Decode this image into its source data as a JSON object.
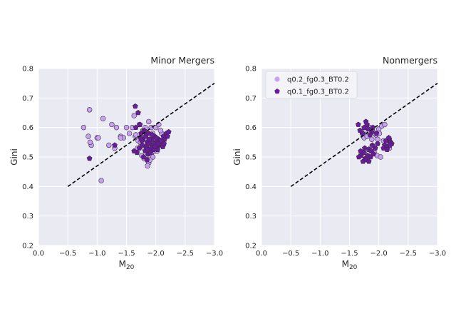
{
  "colors": {
    "axes_bg": "#eaeaf2",
    "grid": "#ffffff",
    "series_light": "#c7a2ef",
    "series_dark": "#6a1b9a",
    "edge": "#3a2a4a",
    "line": "#000000"
  },
  "chart_data": [
    {
      "type": "scatter",
      "title": "Minor Mergers",
      "xlabel": "M",
      "xlabel_sub": "20",
      "ylabel": "Gini",
      "xlim": [
        0.0,
        -3.0
      ],
      "ylim": [
        0.2,
        0.8
      ],
      "xticks": [
        "0.0",
        "−0.5",
        "−1.0",
        "−1.5",
        "−2.0",
        "−2.5",
        "−3.0"
      ],
      "yticks": [
        "0.2",
        "0.3",
        "0.4",
        "0.5",
        "0.6",
        "0.7",
        "0.8"
      ],
      "grid": true,
      "reference_line": {
        "x": [
          -0.5,
          -3.0
        ],
        "y": [
          0.4,
          0.75
        ],
        "style": "dashed"
      },
      "series": [
        {
          "name": "q0.2_fg0.3_BT0.2",
          "marker": "circle",
          "x": [
            -0.87,
            -0.77,
            -0.85,
            -0.9,
            -0.88,
            -1.0,
            -1.07,
            -1.1,
            -1.25,
            -1.33,
            -1.4,
            -1.45,
            -1.5,
            -1.55,
            -1.6,
            -1.65,
            -1.2,
            -1.3,
            -1.4,
            -1.72,
            -1.78,
            -1.82,
            -1.88,
            -1.92,
            -1.95,
            -2.0,
            -2.05,
            -1.7,
            -1.75,
            -1.8,
            -1.85,
            -1.9,
            -1.95,
            -2.0,
            -2.1,
            -1.83,
            -1.87,
            -1.92,
            -1.98,
            -1.76,
            -1.8,
            -1.88,
            -1.95,
            -2.02,
            -1.86,
            -1.9,
            -1.84,
            -1.94,
            -1.78,
            -1.66,
            -1.63,
            -2.08,
            -1.97,
            -1.02,
            -1.69,
            -1.74
          ],
          "y": [
            0.66,
            0.6,
            0.57,
            0.54,
            0.55,
            0.565,
            0.42,
            0.63,
            0.61,
            0.6,
            0.57,
            0.565,
            0.6,
            0.58,
            0.6,
            0.57,
            0.54,
            0.53,
            0.565,
            0.61,
            0.59,
            0.6,
            0.62,
            0.6,
            0.58,
            0.6,
            0.61,
            0.555,
            0.54,
            0.53,
            0.56,
            0.52,
            0.54,
            0.55,
            0.58,
            0.5,
            0.49,
            0.51,
            0.52,
            0.505,
            0.495,
            0.48,
            0.5,
            0.52,
            0.47,
            0.49,
            0.53,
            0.56,
            0.57,
            0.575,
            0.64,
            0.59,
            0.535,
            0.565,
            0.53,
            0.55
          ]
        },
        {
          "name": "q0.1_fg0.3_BT0.2",
          "marker": "pentagon",
          "x": [
            -0.87,
            -1.3,
            -1.65,
            -1.7,
            -1.73,
            -1.75,
            -1.78,
            -1.8,
            -1.83,
            -1.85,
            -1.88,
            -1.9,
            -1.93,
            -1.95,
            -1.98,
            -2.0,
            -2.02,
            -2.05,
            -2.08,
            -2.1,
            -2.13,
            -2.15,
            -2.18,
            -2.2,
            -2.22,
            -1.72,
            -1.77,
            -1.82,
            -1.87,
            -1.92,
            -1.97,
            -2.03,
            -2.07,
            -2.12,
            -1.68,
            -1.76,
            -1.84,
            -1.91,
            -1.96,
            -2.01,
            -2.06,
            -1.74,
            -1.81,
            -1.89,
            -1.94,
            -1.99,
            -2.04,
            -2.09,
            -2.14,
            -1.63,
            -1.66,
            -1.79,
            -1.86,
            -1.85
          ],
          "y": [
            0.495,
            0.54,
            0.672,
            0.65,
            0.61,
            0.58,
            0.56,
            0.59,
            0.57,
            0.55,
            0.58,
            0.545,
            0.56,
            0.54,
            0.57,
            0.55,
            0.53,
            0.56,
            0.54,
            0.55,
            0.57,
            0.56,
            0.58,
            0.57,
            0.585,
            0.53,
            0.54,
            0.52,
            0.51,
            0.53,
            0.545,
            0.525,
            0.545,
            0.535,
            0.515,
            0.555,
            0.535,
            0.515,
            0.525,
            0.565,
            0.555,
            0.565,
            0.585,
            0.56,
            0.575,
            0.535,
            0.545,
            0.555,
            0.545,
            0.52,
            0.6,
            0.5,
            0.525,
            0.49
          ]
        }
      ]
    },
    {
      "type": "scatter",
      "title": "Nonmergers",
      "xlabel": "M",
      "xlabel_sub": "20",
      "ylabel": "Gini",
      "xlim": [
        0.0,
        -3.0
      ],
      "ylim": [
        0.2,
        0.8
      ],
      "xticks": [
        "0.0",
        "−0.5",
        "−1.0",
        "−1.5",
        "−2.0",
        "−2.5",
        "−3.0"
      ],
      "yticks": [
        "0.2",
        "0.3",
        "0.4",
        "0.5",
        "0.6",
        "0.7",
        "0.8"
      ],
      "grid": true,
      "legend": {
        "position": "upper left",
        "entries": [
          "q0.2_fg0.3_BT0.2",
          "q0.1_fg0.3_BT0.2"
        ]
      },
      "reference_line": {
        "x": [
          -0.5,
          -3.0
        ],
        "y": [
          0.4,
          0.75
        ],
        "style": "dashed"
      },
      "series": [
        {
          "name": "q0.2_fg0.3_BT0.2",
          "marker": "circle",
          "x": [
            -1.72,
            -1.78,
            -1.85,
            -1.9,
            -1.95,
            -2.0,
            -2.05,
            -2.1,
            -1.75,
            -1.8,
            -1.88,
            -1.93,
            -1.98,
            -1.7,
            -1.76,
            -1.82,
            -1.86,
            -2.15,
            -2.2,
            -2.18,
            -2.12,
            -2.08,
            -1.92,
            -1.97,
            -1.83,
            -1.79,
            -2.03,
            -2.01
          ],
          "y": [
            0.58,
            0.59,
            0.6,
            0.585,
            0.575,
            0.595,
            0.605,
            0.61,
            0.565,
            0.57,
            0.56,
            0.58,
            0.56,
            0.51,
            0.52,
            0.5,
            0.53,
            0.54,
            0.55,
            0.53,
            0.545,
            0.555,
            0.515,
            0.505,
            0.525,
            0.495,
            0.5,
            0.58
          ]
        },
        {
          "name": "q0.1_fg0.3_BT0.2",
          "marker": "pentagon",
          "x": [
            -1.65,
            -1.68,
            -1.72,
            -1.75,
            -1.78,
            -1.8,
            -1.82,
            -1.85,
            -1.88,
            -1.9,
            -1.7,
            -1.74,
            -1.77,
            -1.81,
            -1.84,
            -1.87,
            -1.91,
            -1.94,
            -1.98,
            -1.73,
            -1.79,
            -1.86,
            -2.1,
            -2.12,
            -2.15,
            -2.18,
            -2.2,
            -2.22,
            -2.14,
            -2.17,
            -2.08,
            -2.19,
            -1.66,
            -1.69,
            -1.89,
            -1.96,
            -1.83,
            -1.76
          ],
          "y": [
            0.61,
            0.59,
            0.58,
            0.6,
            0.62,
            0.61,
            0.595,
            0.575,
            0.585,
            0.6,
            0.505,
            0.515,
            0.495,
            0.505,
            0.525,
            0.52,
            0.51,
            0.53,
            0.545,
            0.485,
            0.49,
            0.5,
            0.54,
            0.555,
            0.535,
            0.56,
            0.55,
            0.545,
            0.525,
            0.565,
            0.53,
            0.54,
            0.5,
            0.52,
            0.54,
            0.58,
            0.485,
            0.53
          ]
        }
      ]
    }
  ]
}
